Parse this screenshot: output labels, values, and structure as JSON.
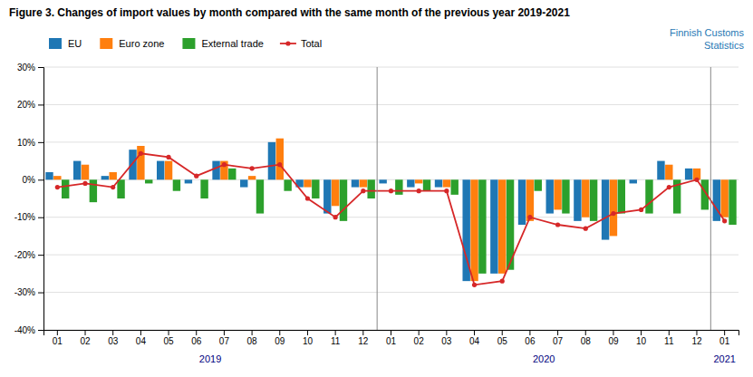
{
  "chart_data": {
    "type": "bar",
    "title": "Figure 3. Changes of import values by month compared with the same month of the previous year 2019-2021",
    "annotations": [
      "2019",
      "2020",
      "2021",
      "Finnish Customs\nStatistics"
    ],
    "categories": [
      "01",
      "02",
      "03",
      "04",
      "05",
      "06",
      "07",
      "08",
      "09",
      "10",
      "11",
      "12",
      "01",
      "02",
      "03",
      "04",
      "05",
      "06",
      "07",
      "08",
      "09",
      "10",
      "11",
      "12",
      "01"
    ],
    "series": [
      {
        "name": "EU",
        "type": "bar",
        "color": "#1f77b4",
        "values": [
          2,
          5,
          1,
          8,
          5,
          -1,
          5,
          -2,
          10,
          -2,
          -9,
          -2,
          -1,
          -2,
          -2,
          -27,
          -25,
          -12,
          -9,
          -11,
          -16,
          -1,
          5,
          3,
          -11
        ]
      },
      {
        "name": "Euro zone",
        "type": "bar",
        "color": "#ff7f0e",
        "values": [
          1,
          4,
          2,
          9,
          5,
          0,
          5,
          1,
          11,
          -2,
          -7,
          -2,
          0,
          -1,
          -2,
          -27,
          -25,
          -11,
          -8,
          -10,
          -15,
          0,
          4,
          3,
          -10
        ]
      },
      {
        "name": "External trade",
        "type": "bar",
        "color": "#2ca02c",
        "values": [
          -5,
          -6,
          -5,
          -1,
          -3,
          -5,
          3,
          -9,
          -3,
          -5,
          -11,
          -5,
          -4,
          -3,
          -4,
          -25,
          -24,
          -3,
          -9,
          -11,
          -9,
          -9,
          -9,
          -8,
          -12
        ]
      },
      {
        "name": "Total",
        "type": "line",
        "color": "#d62728",
        "marker": "circle",
        "values": [
          -2,
          -1,
          -2,
          7,
          6,
          1,
          4,
          3,
          4,
          -5,
          -10,
          -3,
          -3,
          -3,
          -3,
          -28,
          -27,
          -10,
          -12,
          -13,
          -9,
          -8,
          -2,
          0,
          -11
        ]
      }
    ],
    "ylim": [
      -40,
      30
    ],
    "yticks": [
      {
        "value": -40,
        "label": "-40%"
      },
      {
        "value": -30,
        "label": "-30%"
      },
      {
        "value": -20,
        "label": "-20%"
      },
      {
        "value": -10,
        "label": "-10%"
      },
      {
        "value": 0,
        "label": "0%"
      },
      {
        "value": 10,
        "label": "10%"
      },
      {
        "value": 20,
        "label": "20%"
      },
      {
        "value": 30,
        "label": "30%"
      }
    ],
    "grid": true,
    "legend": "top-left"
  }
}
